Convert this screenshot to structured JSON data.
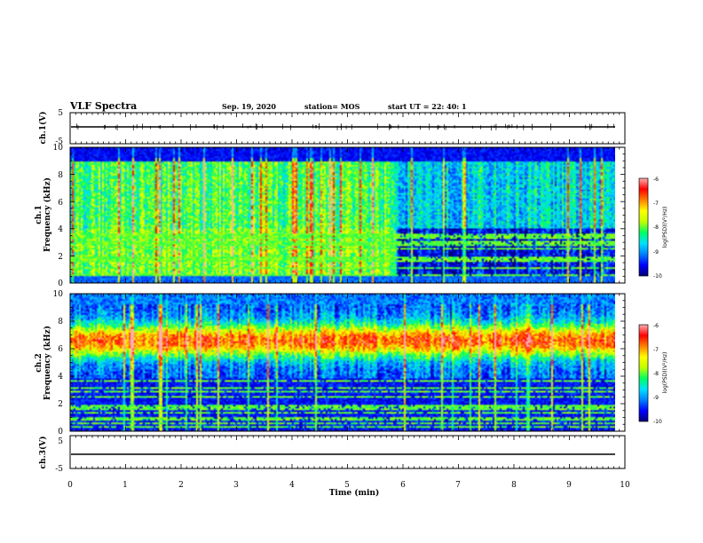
{
  "header": {
    "title": "VLF Spectra",
    "date": "Sep. 19, 2020",
    "station": "station= MOS",
    "start": "start  UT =   22: 40: 1"
  },
  "x_axis": {
    "label": "Time  (min)",
    "range": [
      0,
      10
    ],
    "ticks": [
      "0",
      "1",
      "2",
      "3",
      "4",
      "5",
      "6",
      "7",
      "8",
      "9",
      "10"
    ]
  },
  "panels": {
    "ch1_waveform": {
      "ylabel": "ch.1(V)",
      "ylim": [
        -5,
        5
      ],
      "ticks": [
        "5",
        "-5"
      ]
    },
    "ch1_spectrum": {
      "ylabel_1": "ch.1",
      "ylabel_2": "Frequency  (kHz)",
      "ylim": [
        0,
        10
      ],
      "ticks": [
        "10",
        "8",
        "6",
        "4",
        "2",
        "0"
      ]
    },
    "ch2_spectrum": {
      "ylabel_1": "ch.2",
      "ylabel_2": "Frequency  (kHz)",
      "ylim": [
        0,
        10
      ],
      "ticks": [
        "10",
        "8",
        "6",
        "4",
        "2",
        "0"
      ]
    },
    "ch3_waveform": {
      "ylabel": "ch.3(V)",
      "ylim": [
        -5,
        5
      ],
      "ticks": [
        "5",
        "-5"
      ]
    }
  },
  "colorbar": {
    "label": "log(PSD)(V²/Hz)",
    "range": [
      -10,
      -6
    ],
    "ticks": [
      "-6",
      "-7",
      "-8",
      "-9",
      "-10"
    ],
    "colors": [
      "#00007a",
      "#0000ff",
      "#0080ff",
      "#00e0ff",
      "#00ff60",
      "#c0ff00",
      "#ffff00",
      "#ff8000",
      "#ff0000",
      "#ffb0b0"
    ]
  },
  "chart_data": [
    {
      "type": "line",
      "name_ref": "ch1_waveform",
      "x_range": [
        0,
        9.83
      ],
      "y_value_approx": 0,
      "ylim": [
        -5,
        5
      ]
    },
    {
      "type": "heatmap",
      "name_ref": "ch1_spectrum",
      "x_range": [
        0,
        9.83
      ],
      "y_range_khz": [
        0,
        10
      ],
      "colorbar_range": [
        -10,
        -6
      ],
      "description_values": {
        "broadband_level_0_to_6min": -8.2,
        "broadband_level_6_to_10min": -8.8,
        "noise_band_top_khz": 9.0,
        "low_freq_floor_khz": 4.0
      }
    },
    {
      "type": "heatmap",
      "name_ref": "ch2_spectrum",
      "x_range": [
        0,
        9.83
      ],
      "y_range_khz": [
        0,
        10
      ],
      "colorbar_range": [
        -10,
        -6
      ],
      "description_values": {
        "peak_band_khz": [
          5.5,
          8.0
        ],
        "peak_level": -6.8,
        "lower_edge_khz": 4.0
      }
    },
    {
      "type": "line",
      "name_ref": "ch3_waveform",
      "x_range": [
        0,
        9.83
      ],
      "y_value_approx": 0,
      "ylim": [
        -5,
        5
      ]
    }
  ]
}
